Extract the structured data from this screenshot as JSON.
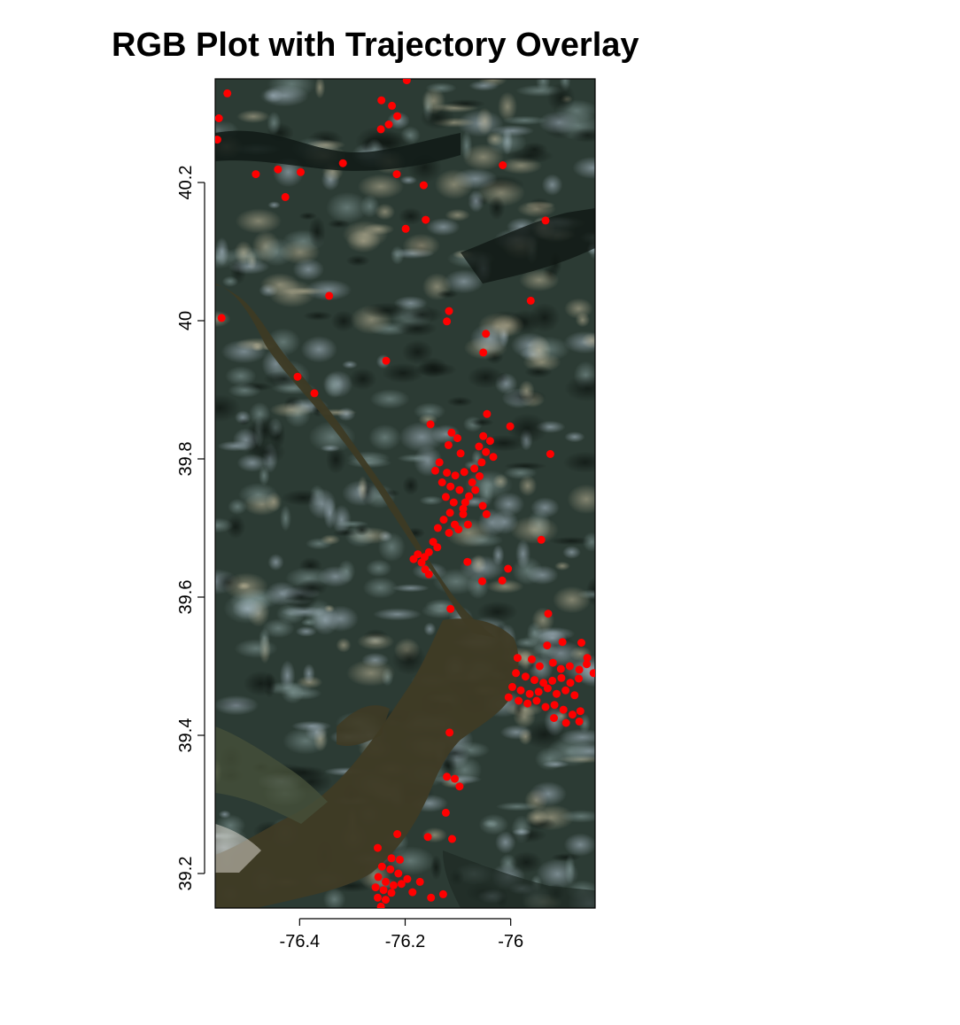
{
  "chart_data": {
    "type": "scatter",
    "title": "RGB Plot with Trajectory Overlay",
    "xlabel": "",
    "ylabel": "",
    "xlim": [
      -76.56,
      -75.84
    ],
    "ylim": [
      39.15,
      40.35
    ],
    "x_ticks": [
      -76.4,
      -76.2,
      -76
    ],
    "x_tick_labels": [
      "-76.4",
      "-76.2",
      "-76"
    ],
    "y_ticks": [
      39.2,
      39.4,
      39.6,
      39.8,
      40,
      40.2
    ],
    "y_tick_labels": [
      "39.2",
      "39.4",
      "39.6",
      "39.8",
      "40",
      "40.2"
    ],
    "background": "RGB satellite imagery",
    "point_color": "#ff0000",
    "grid": false,
    "series": [
      {
        "points": [
          [
            -76.537,
            40.329
          ],
          [
            -76.245,
            40.319
          ],
          [
            -76.225,
            40.311
          ],
          [
            -76.215,
            40.296
          ],
          [
            -76.231,
            40.284
          ],
          [
            -76.246,
            40.277
          ],
          [
            -76.197,
            40.348
          ],
          [
            -76.553,
            40.293
          ],
          [
            -76.556,
            40.262
          ],
          [
            -76.441,
            40.219
          ],
          [
            -76.483,
            40.212
          ],
          [
            -76.398,
            40.215
          ],
          [
            -76.318,
            40.228
          ],
          [
            -76.216,
            40.212
          ],
          [
            -76.165,
            40.196
          ],
          [
            -76.427,
            40.179
          ],
          [
            -76.015,
            40.225
          ],
          [
            -76.161,
            40.146
          ],
          [
            -76.199,
            40.133
          ],
          [
            -75.934,
            40.145
          ],
          [
            -76.344,
            40.036
          ],
          [
            -75.962,
            40.029
          ],
          [
            -76.117,
            40.014
          ],
          [
            -76.121,
            39.999
          ],
          [
            -76.548,
            40.004
          ],
          [
            -76.047,
            39.981
          ],
          [
            -76.052,
            39.954
          ],
          [
            -76.236,
            39.942
          ],
          [
            -76.404,
            39.919
          ],
          [
            -76.372,
            39.895
          ],
          [
            -76.045,
            39.865
          ],
          [
            -76.001,
            39.847
          ],
          [
            -76.152,
            39.85
          ],
          [
            -75.925,
            39.807
          ],
          [
            -76.112,
            39.838
          ],
          [
            -76.101,
            39.83
          ],
          [
            -76.118,
            39.82
          ],
          [
            -76.095,
            39.808
          ],
          [
            -76.135,
            39.795
          ],
          [
            -76.143,
            39.783
          ],
          [
            -76.121,
            39.78
          ],
          [
            -76.105,
            39.776
          ],
          [
            -76.088,
            39.781
          ],
          [
            -76.13,
            39.766
          ],
          [
            -76.114,
            39.76
          ],
          [
            -76.097,
            39.755
          ],
          [
            -76.123,
            39.745
          ],
          [
            -76.108,
            39.737
          ],
          [
            -76.09,
            39.728
          ],
          [
            -76.115,
            39.722
          ],
          [
            -76.127,
            39.712
          ],
          [
            -76.106,
            39.705
          ],
          [
            -76.138,
            39.7
          ],
          [
            -76.117,
            39.693
          ],
          [
            -76.147,
            39.68
          ],
          [
            -76.139,
            39.672
          ],
          [
            -76.155,
            39.665
          ],
          [
            -76.163,
            39.658
          ],
          [
            -76.169,
            39.65
          ],
          [
            -76.176,
            39.662
          ],
          [
            -76.184,
            39.655
          ],
          [
            -76.162,
            39.64
          ],
          [
            -76.155,
            39.633
          ],
          [
            -76.052,
            39.833
          ],
          [
            -76.039,
            39.826
          ],
          [
            -76.06,
            39.818
          ],
          [
            -76.047,
            39.81
          ],
          [
            -76.033,
            39.803
          ],
          [
            -76.055,
            39.795
          ],
          [
            -76.069,
            39.786
          ],
          [
            -76.059,
            39.775
          ],
          [
            -76.073,
            39.766
          ],
          [
            -76.067,
            39.755
          ],
          [
            -76.079,
            39.746
          ],
          [
            -76.086,
            39.737
          ],
          [
            -76.053,
            39.732
          ],
          [
            -76.046,
            39.72
          ],
          [
            -76.09,
            39.72
          ],
          [
            -76.081,
            39.705
          ],
          [
            -76.099,
            39.698
          ],
          [
            -75.942,
            39.683
          ],
          [
            -76.082,
            39.651
          ],
          [
            -76.005,
            39.641
          ],
          [
            -76.054,
            39.623
          ],
          [
            -76.016,
            39.624
          ],
          [
            -76.114,
            39.583
          ],
          [
            -75.929,
            39.576
          ],
          [
            -75.931,
            39.53
          ],
          [
            -75.902,
            39.535
          ],
          [
            -75.987,
            39.512
          ],
          [
            -75.96,
            39.51
          ],
          [
            -75.945,
            39.5
          ],
          [
            -75.92,
            39.505
          ],
          [
            -75.905,
            39.496
          ],
          [
            -75.888,
            39.5
          ],
          [
            -75.87,
            39.495
          ],
          [
            -75.856,
            39.503
          ],
          [
            -75.99,
            39.49
          ],
          [
            -75.972,
            39.485
          ],
          [
            -75.955,
            39.48
          ],
          [
            -75.938,
            39.476
          ],
          [
            -75.921,
            39.479
          ],
          [
            -75.904,
            39.483
          ],
          [
            -75.887,
            39.476
          ],
          [
            -75.871,
            39.482
          ],
          [
            -75.997,
            39.47
          ],
          [
            -75.981,
            39.465
          ],
          [
            -75.964,
            39.46
          ],
          [
            -75.947,
            39.463
          ],
          [
            -75.93,
            39.468
          ],
          [
            -75.913,
            39.46
          ],
          [
            -75.896,
            39.465
          ],
          [
            -75.879,
            39.458
          ],
          [
            -76.004,
            39.455
          ],
          [
            -75.985,
            39.45
          ],
          [
            -75.968,
            39.446
          ],
          [
            -75.951,
            39.45
          ],
          [
            -75.934,
            39.441
          ],
          [
            -75.917,
            39.444
          ],
          [
            -75.9,
            39.437
          ],
          [
            -75.883,
            39.43
          ],
          [
            -75.868,
            39.435
          ],
          [
            -75.918,
            39.425
          ],
          [
            -75.895,
            39.418
          ],
          [
            -75.87,
            39.42
          ],
          [
            -75.855,
            39.512
          ],
          [
            -75.843,
            39.49
          ],
          [
            -75.866,
            39.534
          ],
          [
            -76.116,
            39.404
          ],
          [
            -76.121,
            39.34
          ],
          [
            -76.106,
            39.337
          ],
          [
            -76.097,
            39.326
          ],
          [
            -76.123,
            39.288
          ],
          [
            -76.111,
            39.25
          ],
          [
            -76.157,
            39.253
          ],
          [
            -76.215,
            39.257
          ],
          [
            -76.252,
            39.237
          ],
          [
            -76.226,
            39.222
          ],
          [
            -76.21,
            39.22
          ],
          [
            -76.244,
            39.21
          ],
          [
            -76.228,
            39.206
          ],
          [
            -76.213,
            39.2
          ],
          [
            -76.251,
            39.195
          ],
          [
            -76.237,
            39.188
          ],
          [
            -76.222,
            39.183
          ],
          [
            -76.207,
            39.185
          ],
          [
            -76.256,
            39.18
          ],
          [
            -76.241,
            39.176
          ],
          [
            -76.226,
            39.172
          ],
          [
            -76.252,
            39.165
          ],
          [
            -76.237,
            39.162
          ],
          [
            -76.246,
            39.152
          ],
          [
            -76.196,
            39.192
          ],
          [
            -76.172,
            39.188
          ],
          [
            -76.151,
            39.165
          ],
          [
            -76.128,
            39.17
          ],
          [
            -76.186,
            39.173
          ]
        ]
      }
    ]
  }
}
